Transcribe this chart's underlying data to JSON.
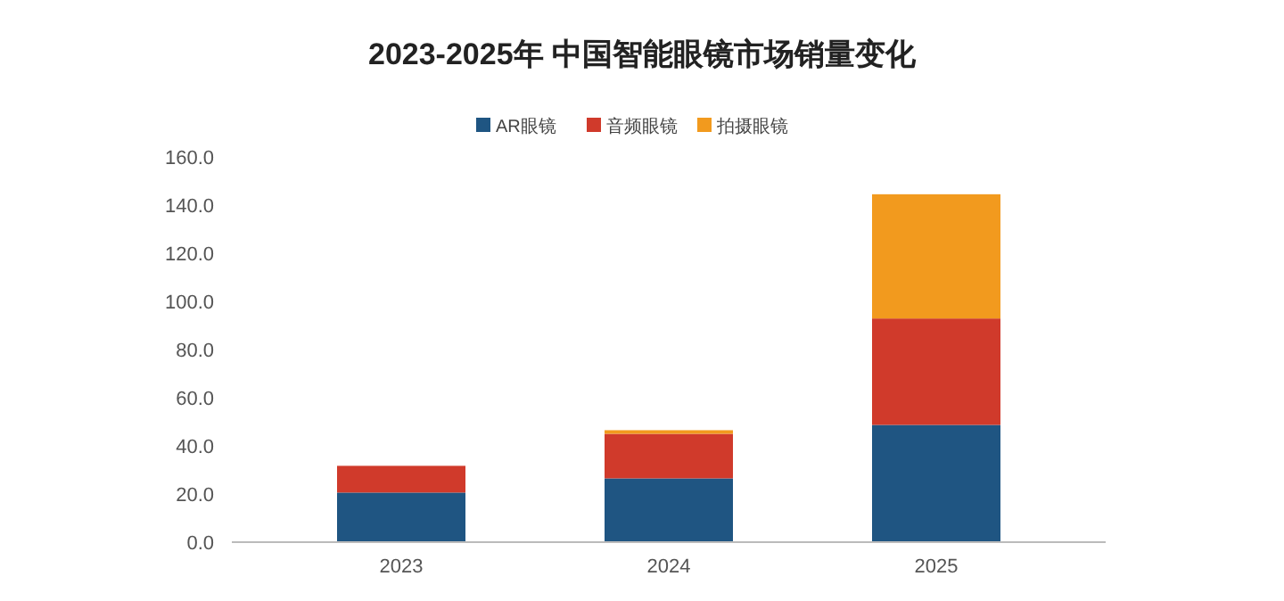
{
  "chart_data": {
    "type": "bar",
    "title": "2023-2025年 中国智能眼镜市场销量变化",
    "categories": [
      "2023",
      "2024",
      "2025"
    ],
    "stacked": true,
    "legend": "top",
    "grid": false,
    "series": [
      {
        "name": "AR眼镜",
        "color": "#1f5582",
        "values": [
          20.6,
          26.5,
          48.7
        ]
      },
      {
        "name": "音频眼镜",
        "color": "#d03a2b",
        "values": [
          11.1,
          18.5,
          44.2
        ]
      },
      {
        "name": "拍摄眼镜",
        "color": "#f29a1e",
        "values": [
          0,
          1.5,
          51.6
        ]
      }
    ],
    "ylim": [
      0,
      160
    ],
    "yticks": [
      {
        "value": 0,
        "label": "0.0"
      },
      {
        "value": 20,
        "label": "20.0"
      },
      {
        "value": 40,
        "label": "40.0"
      },
      {
        "value": 60,
        "label": "60.0"
      },
      {
        "value": 80,
        "label": "80.0"
      },
      {
        "value": 100,
        "label": "100.0"
      },
      {
        "value": 120,
        "label": "120.0"
      },
      {
        "value": 140,
        "label": "140.0"
      },
      {
        "value": 160,
        "label": "160.0"
      }
    ]
  }
}
